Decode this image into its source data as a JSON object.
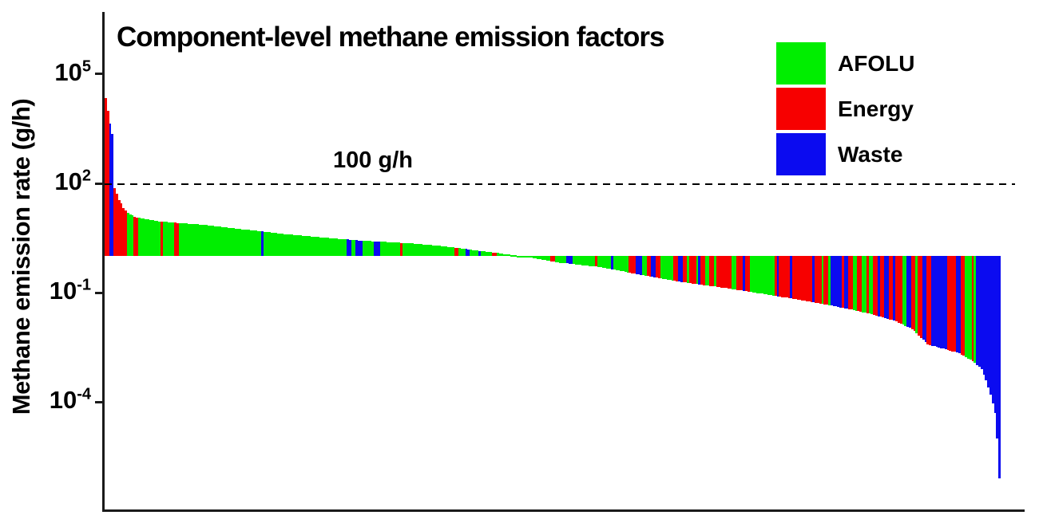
{
  "chart_data": {
    "type": "bar",
    "title": "Component-level methane emission factors",
    "ylabel": "Methane emission rate (g/h)",
    "xlabel": "",
    "y_scale": "log10",
    "ylim_log10": [
      -6.5,
      5.9
    ],
    "grid": false,
    "legend_position": "upper-right",
    "reference_line": {
      "value_g_per_h": 100,
      "label": "100 g/h",
      "style": "dashed"
    },
    "y_ticks": [
      {
        "base": "10",
        "exp": "5",
        "value": 100000
      },
      {
        "base": "10",
        "exp": "2",
        "value": 100
      },
      {
        "base": "10",
        "exp": "-1",
        "value": 0.1
      },
      {
        "base": "10",
        "exp": "-4",
        "value": 0.0001
      }
    ],
    "legend": [
      {
        "label": "AFOLU",
        "color": "#00ee00"
      },
      {
        "label": "Energy",
        "color": "#f70000"
      },
      {
        "label": "Waste",
        "color": "#0b0bf0"
      }
    ],
    "category_key": {
      "A": "AFOLU",
      "E": "Energy",
      "W": "Waste"
    },
    "n_bars": 400,
    "baseline_g_per_h": 1,
    "bars_sorted": "descending emission rate, drawn from 1 g/h baseline",
    "envelope_log10_anchors": [
      [
        0,
        4.34
      ],
      [
        1,
        4.0
      ],
      [
        2,
        3.64
      ],
      [
        3,
        3.36
      ],
      [
        4,
        1.87
      ],
      [
        5,
        1.72
      ],
      [
        6,
        1.55
      ],
      [
        7,
        1.45
      ],
      [
        8,
        1.33
      ],
      [
        9,
        1.25
      ],
      [
        10,
        1.19
      ],
      [
        14,
        1.06
      ],
      [
        25,
        0.95
      ],
      [
        44,
        0.86
      ],
      [
        60,
        0.75
      ],
      [
        78,
        0.62
      ],
      [
        96,
        0.52
      ],
      [
        114,
        0.43
      ],
      [
        135,
        0.36
      ],
      [
        150,
        0.28
      ],
      [
        167,
        0.15
      ],
      [
        186,
        0.0
      ],
      [
        203,
        -0.18
      ],
      [
        221,
        -0.3
      ],
      [
        238,
        -0.5
      ],
      [
        253,
        -0.67
      ],
      [
        263,
        -0.76
      ],
      [
        274,
        -0.85
      ],
      [
        288,
        -0.98
      ],
      [
        310,
        -1.2
      ],
      [
        320,
        -1.31
      ],
      [
        331,
        -1.44
      ],
      [
        342,
        -1.59
      ],
      [
        353,
        -1.79
      ],
      [
        360,
        -2.0
      ],
      [
        367,
        -2.42
      ],
      [
        381,
        -2.66
      ],
      [
        388,
        -2.92
      ],
      [
        391,
        -3.1
      ],
      [
        393,
        -3.4
      ],
      [
        395,
        -3.8
      ],
      [
        397,
        -4.3
      ],
      [
        398,
        -5.0
      ],
      [
        399,
        -6.1
      ]
    ],
    "category_runs": [
      [
        "E",
        2
      ],
      [
        "W",
        2
      ],
      [
        "E",
        6
      ],
      [
        "A",
        3
      ],
      [
        "E",
        2
      ],
      [
        "A",
        10
      ],
      [
        "E",
        1
      ],
      [
        "A",
        5
      ],
      [
        "E",
        2
      ],
      [
        "A",
        37
      ],
      [
        "W",
        1
      ],
      [
        "A",
        37
      ],
      [
        "W",
        2
      ],
      [
        "A",
        2
      ],
      [
        "W",
        3
      ],
      [
        "A",
        5
      ],
      [
        "W",
        3
      ],
      [
        "A",
        9
      ],
      [
        "E",
        1
      ],
      [
        "A",
        23
      ],
      [
        "E",
        2
      ],
      [
        "A",
        3
      ],
      [
        "W",
        2
      ],
      [
        "A",
        4
      ],
      [
        "W",
        1
      ],
      [
        "A",
        5
      ],
      [
        "E",
        2
      ],
      [
        "A",
        24
      ],
      [
        "E",
        2
      ],
      [
        "A",
        5
      ],
      [
        "W",
        3
      ],
      [
        "A",
        10
      ],
      [
        "E",
        1
      ],
      [
        "A",
        6
      ],
      [
        "W",
        1
      ],
      [
        "A",
        7
      ],
      [
        "E",
        3
      ],
      [
        "W",
        3
      ],
      [
        "A",
        2
      ],
      [
        "E",
        2
      ],
      [
        "W",
        2
      ],
      [
        "E",
        2
      ],
      [
        "A",
        6
      ],
      [
        "E",
        2
      ],
      [
        "W",
        2
      ],
      [
        "E",
        2
      ],
      [
        "A",
        1
      ],
      [
        "E",
        3
      ],
      [
        "A",
        1
      ],
      [
        "W",
        1
      ],
      [
        "E",
        2
      ],
      [
        "A",
        2
      ],
      [
        "E",
        2
      ],
      [
        "A",
        1
      ],
      [
        "E",
        7
      ],
      [
        "A",
        2
      ],
      [
        "E",
        3
      ],
      [
        "W",
        1
      ],
      [
        "E",
        2
      ],
      [
        "A",
        11
      ],
      [
        "E",
        1
      ],
      [
        "W",
        1
      ],
      [
        "E",
        5
      ],
      [
        "W",
        1
      ],
      [
        "E",
        9
      ],
      [
        "W",
        1
      ],
      [
        "E",
        3
      ],
      [
        "A",
        1
      ],
      [
        "E",
        2
      ],
      [
        "A",
        1
      ],
      [
        "W",
        5
      ],
      [
        "E",
        1
      ],
      [
        "W",
        2
      ],
      [
        "E",
        2
      ],
      [
        "A",
        2
      ],
      [
        "E",
        2
      ],
      [
        "A",
        2
      ],
      [
        "E",
        1
      ],
      [
        "A",
        2
      ],
      [
        "E",
        2
      ],
      [
        "W",
        1
      ],
      [
        "E",
        2
      ],
      [
        "W",
        2
      ],
      [
        "E",
        2
      ],
      [
        "W",
        1
      ],
      [
        "E",
        3
      ],
      [
        "A",
        2
      ],
      [
        "W",
        2
      ],
      [
        "E",
        2
      ],
      [
        "A",
        1
      ],
      [
        "E",
        2
      ],
      [
        "W",
        2
      ],
      [
        "E",
        2
      ],
      [
        "W",
        7
      ],
      [
        "E",
        4
      ],
      [
        "W",
        2
      ],
      [
        "E",
        2
      ],
      [
        "A",
        3
      ],
      [
        "E",
        1
      ],
      [
        "A",
        1
      ],
      [
        "W",
        11
      ]
    ]
  }
}
